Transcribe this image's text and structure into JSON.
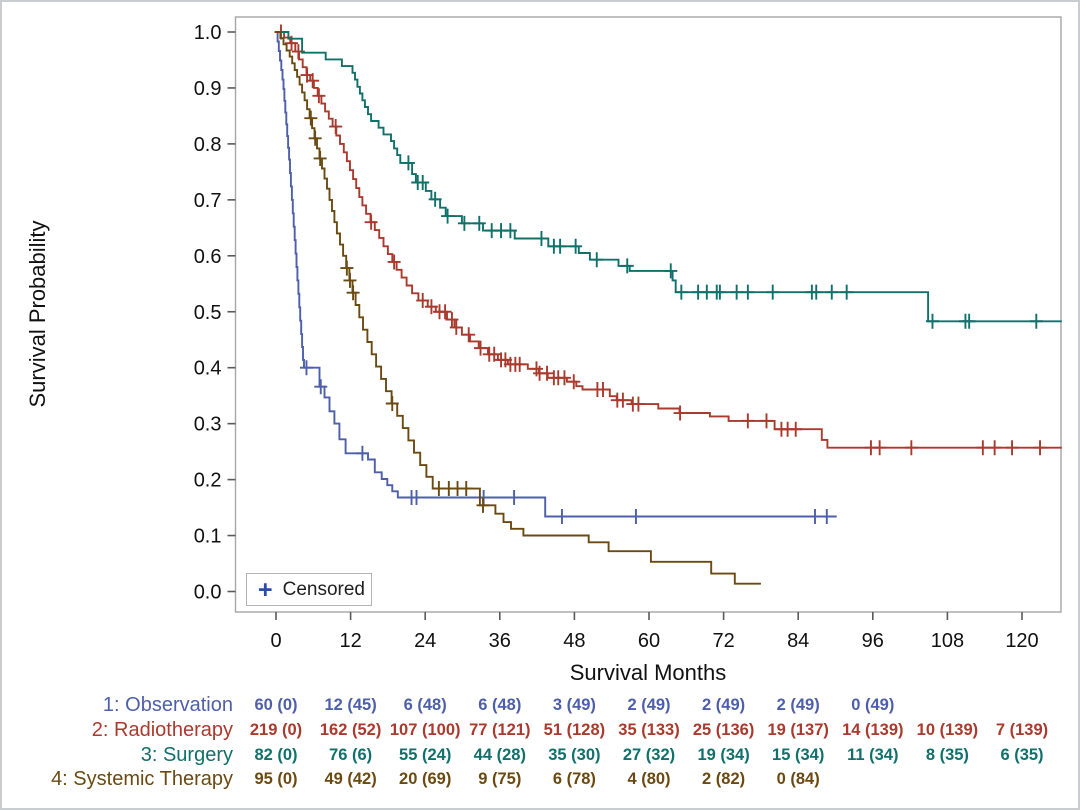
{
  "legend": {
    "marker": "+",
    "label": "Censored"
  },
  "chart_data": {
    "type": "line",
    "subtype": "kaplan-meier-step",
    "title": "",
    "xlabel": "Survival Months",
    "ylabel": "Survival Probability",
    "xlim": [
      -6.5,
      126.4
    ],
    "ylim": [
      0.0,
      1.05
    ],
    "grid": false,
    "legend_position": "bottom-left-inside",
    "x_ticks": [
      0,
      12,
      24,
      36,
      48,
      60,
      72,
      84,
      96,
      108,
      120
    ],
    "x_tick_labels": [
      "0",
      "12",
      "24",
      "36",
      "48",
      "60",
      "72",
      "84",
      "96",
      "108",
      "120"
    ],
    "y_ticks": [
      0.0,
      0.1,
      0.2,
      0.3,
      0.4,
      0.5,
      0.6,
      0.7,
      0.8,
      0.9,
      1.0
    ],
    "y_tick_labels": [
      "0.0",
      "0.1",
      "0.2",
      "0.3",
      "0.4",
      "0.5",
      "0.6",
      "0.7",
      "0.8",
      "0.9",
      "1.0"
    ],
    "series": [
      {
        "name": "1: Observation",
        "slug": "observation",
        "color": "#4d5fa9",
        "end": 90.2,
        "steps": [
          [
            0,
            1.0
          ],
          [
            0.25,
            0.983
          ],
          [
            0.45,
            0.966
          ],
          [
            0.65,
            0.949
          ],
          [
            0.85,
            0.932
          ],
          [
            1.05,
            0.915
          ],
          [
            1.2,
            0.898
          ],
          [
            1.35,
            0.877
          ],
          [
            1.5,
            0.856
          ],
          [
            1.65,
            0.835
          ],
          [
            1.8,
            0.814
          ],
          [
            1.95,
            0.793
          ],
          [
            2.1,
            0.772
          ],
          [
            2.25,
            0.748
          ],
          [
            2.4,
            0.724
          ],
          [
            2.55,
            0.7
          ],
          [
            2.7,
            0.676
          ],
          [
            2.85,
            0.652
          ],
          [
            3.0,
            0.628
          ],
          [
            3.15,
            0.604
          ],
          [
            3.3,
            0.58
          ],
          [
            3.45,
            0.556
          ],
          [
            3.6,
            0.532
          ],
          [
            3.75,
            0.508
          ],
          [
            3.9,
            0.484
          ],
          [
            4.05,
            0.46
          ],
          [
            4.2,
            0.437
          ],
          [
            4.35,
            0.414
          ],
          [
            4.5,
            0.4
          ],
          [
            7.0,
            0.366
          ],
          [
            7.8,
            0.347
          ],
          [
            8.6,
            0.322
          ],
          [
            9.4,
            0.3
          ],
          [
            10.2,
            0.272
          ],
          [
            11.2,
            0.247
          ],
          [
            14.8,
            0.236
          ],
          [
            15.9,
            0.213
          ],
          [
            17.0,
            0.201
          ],
          [
            17.9,
            0.19
          ],
          [
            18.7,
            0.179
          ],
          [
            19.6,
            0.168
          ],
          [
            43.3,
            0.134
          ]
        ],
        "censor_times": [
          4.9,
          7.2,
          13.9,
          21.8,
          22.6,
          33.4,
          38.3,
          46.0,
          57.9,
          86.7,
          88.6
        ]
      },
      {
        "name": "2: Radiotherapy",
        "slug": "radiotherapy",
        "color": "#a93a2d",
        "end": 126.4,
        "steps": [
          [
            0,
            1.0
          ],
          [
            1.3,
            0.99
          ],
          [
            2.3,
            0.98
          ],
          [
            3.1,
            0.965
          ],
          [
            3.7,
            0.951
          ],
          [
            4.3,
            0.937
          ],
          [
            4.9,
            0.923
          ],
          [
            5.5,
            0.913
          ],
          [
            6.1,
            0.9
          ],
          [
            6.7,
            0.886
          ],
          [
            7.3,
            0.872
          ],
          [
            7.9,
            0.858
          ],
          [
            8.5,
            0.845
          ],
          [
            9.1,
            0.831
          ],
          [
            9.7,
            0.815
          ],
          [
            10.3,
            0.8
          ],
          [
            10.9,
            0.785
          ],
          [
            11.4,
            0.769
          ],
          [
            11.9,
            0.753
          ],
          [
            12.4,
            0.737
          ],
          [
            12.9,
            0.721
          ],
          [
            13.4,
            0.705
          ],
          [
            13.9,
            0.69
          ],
          [
            14.5,
            0.675
          ],
          [
            15.2,
            0.66
          ],
          [
            15.9,
            0.646
          ],
          [
            16.6,
            0.632
          ],
          [
            17.3,
            0.617
          ],
          [
            18.0,
            0.603
          ],
          [
            18.7,
            0.589
          ],
          [
            19.4,
            0.575
          ],
          [
            20.2,
            0.561
          ],
          [
            21.0,
            0.547
          ],
          [
            21.9,
            0.533
          ],
          [
            22.9,
            0.52
          ],
          [
            24.4,
            0.509
          ],
          [
            25.7,
            0.5
          ],
          [
            27.5,
            0.486
          ],
          [
            28.7,
            0.472
          ],
          [
            29.9,
            0.459
          ],
          [
            31.2,
            0.447
          ],
          [
            32.6,
            0.435
          ],
          [
            34.1,
            0.424
          ],
          [
            35.7,
            0.414
          ],
          [
            37.3,
            0.406
          ],
          [
            40.5,
            0.398
          ],
          [
            42.3,
            0.39
          ],
          [
            43.7,
            0.382
          ],
          [
            46.8,
            0.375
          ],
          [
            48.3,
            0.367
          ],
          [
            49.3,
            0.361
          ],
          [
            53.7,
            0.349
          ],
          [
            54.8,
            0.342
          ],
          [
            57.2,
            0.335
          ],
          [
            61.5,
            0.327
          ],
          [
            64.9,
            0.319
          ],
          [
            69.8,
            0.313
          ],
          [
            72.8,
            0.305
          ],
          [
            80.2,
            0.29
          ],
          [
            87.8,
            0.271
          ],
          [
            88.7,
            0.257
          ]
        ],
        "censor_times": [
          0.8,
          2.5,
          3.6,
          5.0,
          5.9,
          6.9,
          9.6,
          15.3,
          19.0,
          23.6,
          25.0,
          26.3,
          27.2,
          28.3,
          29.0,
          31.0,
          32.9,
          34.3,
          35.1,
          36.2,
          36.9,
          37.7,
          38.5,
          39.2,
          41.9,
          42.4,
          43.6,
          44.7,
          45.4,
          46.4,
          47.9,
          51.7,
          52.6,
          54.9,
          55.8,
          57.4,
          58.3,
          65.0,
          75.9,
          78.9,
          81.3,
          82.3,
          83.6,
          95.7,
          97.1,
          102.2,
          113.7,
          115.6,
          118.4,
          122.9
        ]
      },
      {
        "name": "3: Surgery",
        "slug": "surgery",
        "color": "#10706a",
        "end": 126.4,
        "steps": [
          [
            0,
            1.0
          ],
          [
            2.0,
            0.988
          ],
          [
            4.2,
            0.963
          ],
          [
            8.0,
            0.951
          ],
          [
            10.6,
            0.939
          ],
          [
            12.3,
            0.927
          ],
          [
            12.7,
            0.915
          ],
          [
            13.1,
            0.902
          ],
          [
            13.5,
            0.89
          ],
          [
            13.9,
            0.878
          ],
          [
            14.3,
            0.866
          ],
          [
            14.8,
            0.853
          ],
          [
            15.3,
            0.841
          ],
          [
            16.5,
            0.829
          ],
          [
            17.3,
            0.817
          ],
          [
            18.5,
            0.805
          ],
          [
            19.0,
            0.792
          ],
          [
            19.5,
            0.78
          ],
          [
            20.0,
            0.766
          ],
          [
            21.9,
            0.746
          ],
          [
            22.5,
            0.731
          ],
          [
            24.1,
            0.716
          ],
          [
            25.0,
            0.701
          ],
          [
            26.4,
            0.686
          ],
          [
            27.3,
            0.671
          ],
          [
            29.9,
            0.658
          ],
          [
            33.3,
            0.645
          ],
          [
            38.4,
            0.631
          ],
          [
            43.8,
            0.617
          ],
          [
            48.7,
            0.605
          ],
          [
            50.5,
            0.593
          ],
          [
            55.1,
            0.582
          ],
          [
            56.9,
            0.573
          ],
          [
            63.8,
            0.556
          ],
          [
            64.3,
            0.535
          ],
          [
            104.9,
            0.483
          ]
        ],
        "censor_times": [
          21.3,
          22.8,
          23.6,
          25.6,
          27.6,
          30.3,
          32.7,
          34.7,
          36.2,
          37.7,
          42.7,
          44.7,
          45.7,
          48.2,
          51.6,
          56.5,
          63.5,
          65.2,
          67.9,
          69.3,
          70.9,
          71.4,
          74.1,
          75.9,
          79.9,
          86.2,
          86.9,
          89.4,
          91.8,
          105.6,
          110.9,
          111.5,
          122.3
        ]
      },
      {
        "name": "4: Systemic Therapy",
        "slug": "systemic-therapy",
        "color": "#6b4a12",
        "end": 78.0,
        "steps": [
          [
            0,
            1.0
          ],
          [
            0.7,
            0.989
          ],
          [
            1.2,
            0.978
          ],
          [
            1.7,
            0.967
          ],
          [
            2.2,
            0.956
          ],
          [
            2.6,
            0.944
          ],
          [
            3.0,
            0.932
          ],
          [
            3.4,
            0.92
          ],
          [
            3.8,
            0.906
          ],
          [
            4.2,
            0.892
          ],
          [
            4.6,
            0.878
          ],
          [
            5.0,
            0.862
          ],
          [
            5.4,
            0.846
          ],
          [
            5.8,
            0.828
          ],
          [
            6.2,
            0.81
          ],
          [
            6.6,
            0.792
          ],
          [
            7.0,
            0.774
          ],
          [
            7.4,
            0.756
          ],
          [
            7.8,
            0.738
          ],
          [
            8.2,
            0.72
          ],
          [
            8.6,
            0.7
          ],
          [
            9.0,
            0.68
          ],
          [
            9.4,
            0.66
          ],
          [
            9.8,
            0.64
          ],
          [
            10.3,
            0.62
          ],
          [
            10.8,
            0.6
          ],
          [
            11.3,
            0.578
          ],
          [
            11.8,
            0.556
          ],
          [
            12.3,
            0.534
          ],
          [
            12.8,
            0.512
          ],
          [
            13.4,
            0.49
          ],
          [
            14.0,
            0.468
          ],
          [
            14.7,
            0.446
          ],
          [
            15.4,
            0.424
          ],
          [
            16.1,
            0.402
          ],
          [
            16.9,
            0.38
          ],
          [
            17.7,
            0.358
          ],
          [
            18.6,
            0.336
          ],
          [
            19.5,
            0.314
          ],
          [
            20.4,
            0.292
          ],
          [
            21.3,
            0.27
          ],
          [
            22.2,
            0.248
          ],
          [
            23.2,
            0.226
          ],
          [
            24.2,
            0.205
          ],
          [
            25.2,
            0.184
          ],
          [
            32.8,
            0.154
          ],
          [
            35.3,
            0.139
          ],
          [
            36.6,
            0.124
          ],
          [
            37.8,
            0.112
          ],
          [
            39.8,
            0.1
          ],
          [
            50.3,
            0.088
          ],
          [
            53.5,
            0.072
          ],
          [
            60.3,
            0.053
          ],
          [
            70.0,
            0.032
          ],
          [
            73.8,
            0.014
          ]
        ],
        "censor_times": [
          5.6,
          6.3,
          7.1,
          11.4,
          11.9,
          12.4,
          18.7,
          26.2,
          27.8,
          29.2,
          30.6,
          33.3
        ]
      }
    ]
  },
  "risk_table": {
    "rows": [
      {
        "label": "1: Observation",
        "color": "#4d5fa9",
        "values": [
          "60 (0)",
          "12 (45)",
          "6 (48)",
          "6 (48)",
          "3 (49)",
          "2 (49)",
          "2 (49)",
          "2 (49)",
          "0 (49)"
        ]
      },
      {
        "label": "2: Radiotherapy",
        "color": "#a93a2d",
        "values": [
          "219 (0)",
          "162 (52)",
          "107 (100)",
          "77 (121)",
          "51 (128)",
          "35 (133)",
          "25 (136)",
          "19 (137)",
          "14 (139)",
          "10 (139)",
          "7 (139)"
        ]
      },
      {
        "label": "3: Surgery",
        "color": "#10706a",
        "values": [
          "82 (0)",
          "76 (6)",
          "55 (24)",
          "44 (28)",
          "35 (30)",
          "27 (32)",
          "19 (34)",
          "15 (34)",
          "11 (34)",
          "8 (35)",
          "6 (35)"
        ]
      },
      {
        "label": "4: Systemic Therapy",
        "color": "#6b4a12",
        "values": [
          "95 (0)",
          "49 (42)",
          "20 (69)",
          "9 (75)",
          "6 (78)",
          "4 (80)",
          "2 (82)",
          "0 (84)"
        ]
      }
    ]
  }
}
